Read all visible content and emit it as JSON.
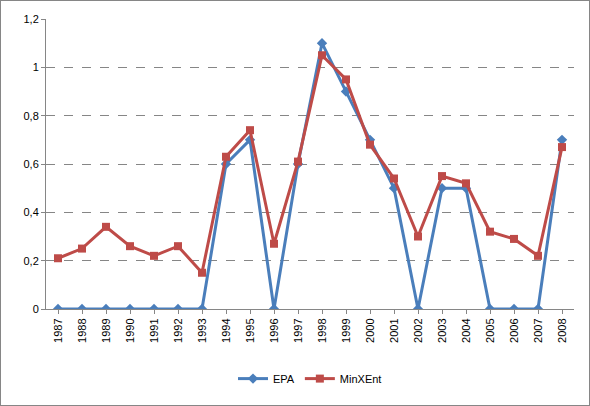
{
  "chart_data": {
    "type": "line",
    "categories": [
      "1987",
      "1988",
      "1989",
      "1990",
      "1991",
      "1992",
      "1993",
      "1994",
      "1995",
      "1996",
      "1997",
      "1998",
      "1999",
      "2000",
      "2001",
      "2002",
      "2003",
      "2004",
      "2005",
      "2006",
      "2007",
      "2008"
    ],
    "series": [
      {
        "name": "EPA",
        "color": "#4a7ebb",
        "marker": "diamond",
        "line_style": "solid",
        "values": [
          0,
          0,
          0,
          0,
          0,
          0,
          0,
          0.6,
          0.7,
          0,
          0.6,
          1.1,
          0.9,
          0.7,
          0.5,
          0,
          0.5,
          0.5,
          0,
          0,
          0,
          0.7
        ]
      },
      {
        "name": "MinXEnt",
        "color": "#be4b48",
        "marker": "square",
        "line_style": "solid",
        "values": [
          0.21,
          0.25,
          0.34,
          0.26,
          0.22,
          0.26,
          0.15,
          0.63,
          0.74,
          0.27,
          0.61,
          1.05,
          0.95,
          0.68,
          0.54,
          0.3,
          0.55,
          0.52,
          0.32,
          0.29,
          0.22,
          0.67
        ]
      }
    ],
    "ylim": [
      0,
      1.2
    ],
    "yticks": [
      0,
      {
        "value": 0.2,
        "label": "0,2"
      },
      {
        "value": 0.4,
        "label": "0,4"
      },
      {
        "value": 0.6,
        "label": "0,6"
      },
      {
        "value": 0.8,
        "label": "0,8"
      },
      1,
      {
        "value": 1.2,
        "label": "1,2"
      }
    ],
    "grid": true,
    "legend": "bottom"
  }
}
